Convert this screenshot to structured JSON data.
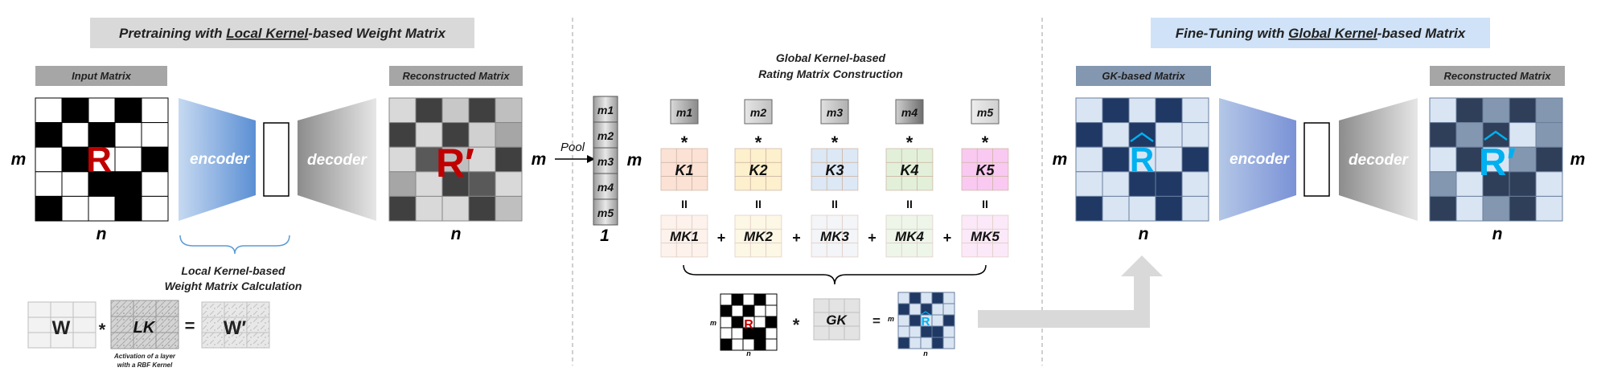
{
  "left_panel": {
    "title_pre": "Pretraining with ",
    "title_u": "Local Kernel",
    "title_post": "-based Weight Matrix",
    "input_label": "Input Matrix",
    "recon_label": "Reconstructed Matrix",
    "matrix_symbol": "R",
    "recon_symbol": "R′",
    "dim_m": "m",
    "dim_n": "n",
    "encoder": "encoder",
    "decoder": "decoder",
    "local_calc_line1": "Local Kernel-based",
    "local_calc_line2": "Weight Matrix Calculation",
    "w": "W",
    "star": "*",
    "lk": "LK",
    "equals": "=",
    "w_prime": "W′",
    "rbf_line1": "Activation of a layer",
    "rbf_line2": "with a RBF Kernel"
  },
  "middle_panel": {
    "pool": "Pool",
    "title_line1": "Global Kernel-based",
    "title_line2": "Rating Matrix Construction",
    "m": "m",
    "one": "1",
    "pool_cells": [
      "m1",
      "m2",
      "m3",
      "m4",
      "m5"
    ],
    "m_boxes": [
      "m1",
      "m2",
      "m3",
      "m4",
      "m5"
    ],
    "star": "*",
    "k_labels": [
      "K1",
      "K2",
      "K3",
      "K4",
      "K5"
    ],
    "eq_sign": "II",
    "mk_labels": [
      "MK1",
      "MK2",
      "MK3",
      "MK4",
      "MK5"
    ],
    "plus": "+",
    "gk": "GK",
    "small_r": "R",
    "small_m": "m",
    "small_n": "n",
    "equals": "=",
    "k_colors": [
      "#fbe2d5",
      "#fdf0cc",
      "#dce8f5",
      "#e2f0d9",
      "#f9c9f2"
    ],
    "mk_colors": [
      "#fdf2ec",
      "#fdf7e6",
      "#f3f5f8",
      "#eef6ea",
      "#fbe8f8"
    ]
  },
  "right_panel": {
    "title_pre": "Fine-Tuning with ",
    "title_u": "Global Kernel",
    "title_post": "-based Matrix",
    "gk_label": "GK-based Matrix",
    "recon_label": "Reconstructed Matrix",
    "matrix_symbol": "R",
    "recon_symbol": "R′",
    "dim_m": "m",
    "dim_n": "n",
    "encoder": "encoder",
    "decoder": "decoder"
  },
  "colors": {
    "navy": "#1f3864",
    "light_blue": "#dae5f4",
    "red": "#c00000",
    "cyan": "#00b0f0"
  }
}
